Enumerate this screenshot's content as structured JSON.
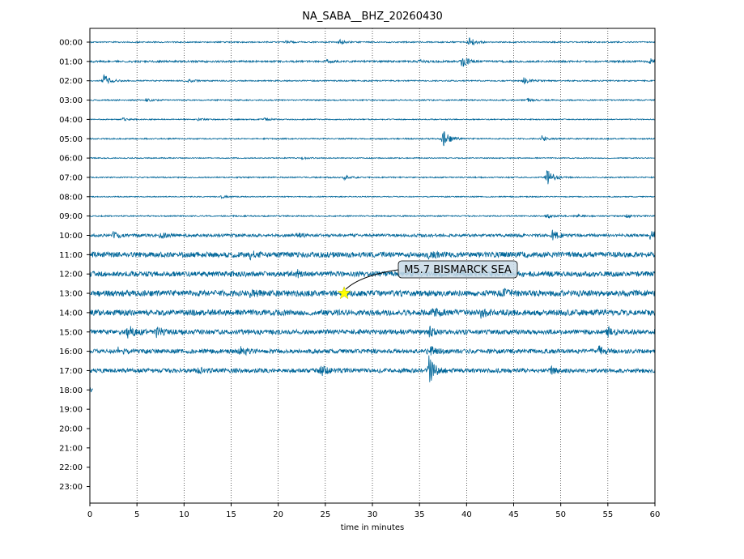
{
  "chart_data": {
    "type": "line",
    "title": "NA_SABA__BHZ_20260430",
    "xlabel": "time in minutes",
    "ylabel": "",
    "xlim": [
      0,
      60
    ],
    "x_ticks": [
      "0",
      "5",
      "10",
      "15",
      "20",
      "25",
      "30",
      "35",
      "40",
      "45",
      "50",
      "55",
      "60"
    ],
    "x_tick_values": [
      0,
      5,
      10,
      15,
      20,
      25,
      30,
      35,
      40,
      45,
      50,
      55,
      60
    ],
    "vertical_gridlines_minutes": [
      5,
      10,
      15,
      20,
      25,
      30,
      35,
      40,
      45,
      50,
      55
    ],
    "grid": "dotted vertical lines at 5-minute intervals",
    "trace_color": "#006699",
    "row_labels": [
      "00:00",
      "01:00",
      "02:00",
      "03:00",
      "04:00",
      "05:00",
      "06:00",
      "07:00",
      "08:00",
      "09:00",
      "10:00",
      "11:00",
      "12:00",
      "13:00",
      "14:00",
      "15:00",
      "16:00",
      "17:00",
      "18:00",
      "19:00",
      "20:00",
      "21:00",
      "22:00",
      "23:00"
    ],
    "traces": [
      {
        "hour": "00:00",
        "end_minute": 60,
        "noise": 0.12,
        "bursts": [
          {
            "t": 26.5,
            "a": 0.45
          },
          {
            "t": 40.3,
            "a": 0.9
          },
          {
            "t": 20.8,
            "a": 0.2
          }
        ]
      },
      {
        "hour": "01:00",
        "end_minute": 60,
        "noise": 0.18,
        "bursts": [
          {
            "t": 39.5,
            "a": 1.0
          },
          {
            "t": 25.0,
            "a": 0.35
          },
          {
            "t": 59.5,
            "a": 0.5
          },
          {
            "t": 35.0,
            "a": 0.3
          }
        ]
      },
      {
        "hour": "02:00",
        "end_minute": 60,
        "noise": 0.12,
        "bursts": [
          {
            "t": 1.5,
            "a": 1.1
          },
          {
            "t": 46.0,
            "a": 0.6
          },
          {
            "t": 10.5,
            "a": 0.25
          }
        ]
      },
      {
        "hour": "03:00",
        "end_minute": 60,
        "noise": 0.12,
        "bursts": [
          {
            "t": 6.0,
            "a": 0.25
          },
          {
            "t": 46.5,
            "a": 0.25
          }
        ]
      },
      {
        "hour": "04:00",
        "end_minute": 60,
        "noise": 0.1,
        "bursts": [
          {
            "t": 3.5,
            "a": 0.3
          },
          {
            "t": 18.5,
            "a": 0.35
          },
          {
            "t": 11.5,
            "a": 0.2
          }
        ]
      },
      {
        "hour": "05:00",
        "end_minute": 60,
        "noise": 0.12,
        "bursts": [
          {
            "t": 37.5,
            "a": 1.7
          },
          {
            "t": 48.0,
            "a": 0.55
          }
        ]
      },
      {
        "hour": "06:00",
        "end_minute": 60,
        "noise": 0.1,
        "bursts": [
          {
            "t": 22.5,
            "a": 0.2
          }
        ]
      },
      {
        "hour": "07:00",
        "end_minute": 60,
        "noise": 0.12,
        "bursts": [
          {
            "t": 48.5,
            "a": 1.6
          },
          {
            "t": 27.0,
            "a": 0.45
          }
        ]
      },
      {
        "hour": "08:00",
        "end_minute": 60,
        "noise": 0.1,
        "bursts": [
          {
            "t": 14.0,
            "a": 0.25
          }
        ]
      },
      {
        "hour": "09:00",
        "end_minute": 60,
        "noise": 0.12,
        "bursts": [
          {
            "t": 48.5,
            "a": 0.45
          },
          {
            "t": 51.5,
            "a": 0.35
          },
          {
            "t": 57.0,
            "a": 0.25
          }
        ]
      },
      {
        "hour": "10:00",
        "end_minute": 60,
        "noise": 0.28,
        "bursts": [
          {
            "t": 49.0,
            "a": 1.0
          },
          {
            "t": 59.5,
            "a": 0.8
          },
          {
            "t": 2.5,
            "a": 0.6
          },
          {
            "t": 7.5,
            "a": 0.55
          },
          {
            "t": 22.0,
            "a": 0.4
          }
        ]
      },
      {
        "hour": "11:00",
        "end_minute": 60,
        "noise": 0.5,
        "bursts": [
          {
            "t": 17.0,
            "a": 0.6
          },
          {
            "t": 36.0,
            "a": 0.6
          }
        ]
      },
      {
        "hour": "12:00",
        "end_minute": 60,
        "noise": 0.5,
        "bursts": [
          {
            "t": 22.0,
            "a": 0.5
          }
        ]
      },
      {
        "hour": "13:00",
        "end_minute": 60,
        "noise": 0.55,
        "bursts": [
          {
            "t": 17.0,
            "a": 0.6
          },
          {
            "t": 44.0,
            "a": 0.5
          }
        ]
      },
      {
        "hour": "14:00",
        "end_minute": 60,
        "noise": 0.55,
        "bursts": [
          {
            "t": 36.5,
            "a": 0.9
          },
          {
            "t": 41.5,
            "a": 0.7
          }
        ]
      },
      {
        "hour": "15:00",
        "end_minute": 60,
        "noise": 0.45,
        "bursts": [
          {
            "t": 4.0,
            "a": 1.3
          },
          {
            "t": 7.0,
            "a": 0.9
          },
          {
            "t": 36.0,
            "a": 0.9
          },
          {
            "t": 55.0,
            "a": 0.8
          }
        ]
      },
      {
        "hour": "16:00",
        "end_minute": 60,
        "noise": 0.4,
        "bursts": [
          {
            "t": 3.0,
            "a": 0.6
          },
          {
            "t": 16.0,
            "a": 0.8
          },
          {
            "t": 36.0,
            "a": 1.0
          },
          {
            "t": 54.0,
            "a": 0.9
          }
        ]
      },
      {
        "hour": "17:00",
        "end_minute": 60,
        "noise": 0.4,
        "bursts": [
          {
            "t": 36.0,
            "a": 2.6
          },
          {
            "t": 24.5,
            "a": 0.9
          },
          {
            "t": 11.5,
            "a": 0.5
          },
          {
            "t": 49.0,
            "a": 0.6
          }
        ]
      },
      {
        "hour": "18:00",
        "end_minute": 0.3,
        "noise": 0.6,
        "bursts": []
      }
    ],
    "event_marker": {
      "minute": 27,
      "hour": "13:00",
      "label": "M5.7 BISMARCK SEA",
      "marker_color": "#ffff00"
    }
  }
}
